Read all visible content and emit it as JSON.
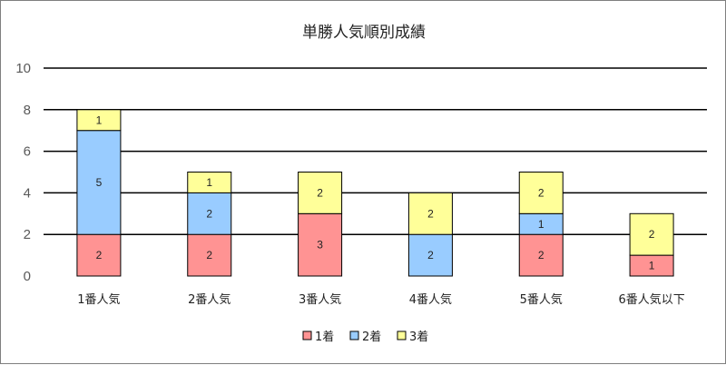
{
  "chart_data": {
    "type": "bar",
    "stacked": true,
    "title": "単勝人気順別成績",
    "categories": [
      "1番人気",
      "2番人気",
      "3番人気",
      "4番人気",
      "5番人気",
      "6番人気以下"
    ],
    "series": [
      {
        "name": "1着",
        "color": "#ff9393",
        "values": [
          2,
          2,
          3,
          0,
          2,
          1
        ]
      },
      {
        "name": "2着",
        "color": "#99ccff",
        "values": [
          5,
          2,
          0,
          2,
          1,
          0
        ]
      },
      {
        "name": "3着",
        "color": "#ffff99",
        "values": [
          1,
          1,
          2,
          2,
          2,
          2
        ]
      }
    ],
    "ylim": [
      0,
      10
    ],
    "yticks": [
      0,
      2,
      4,
      6,
      8,
      10
    ],
    "grid": true,
    "legend_position": "bottom"
  }
}
